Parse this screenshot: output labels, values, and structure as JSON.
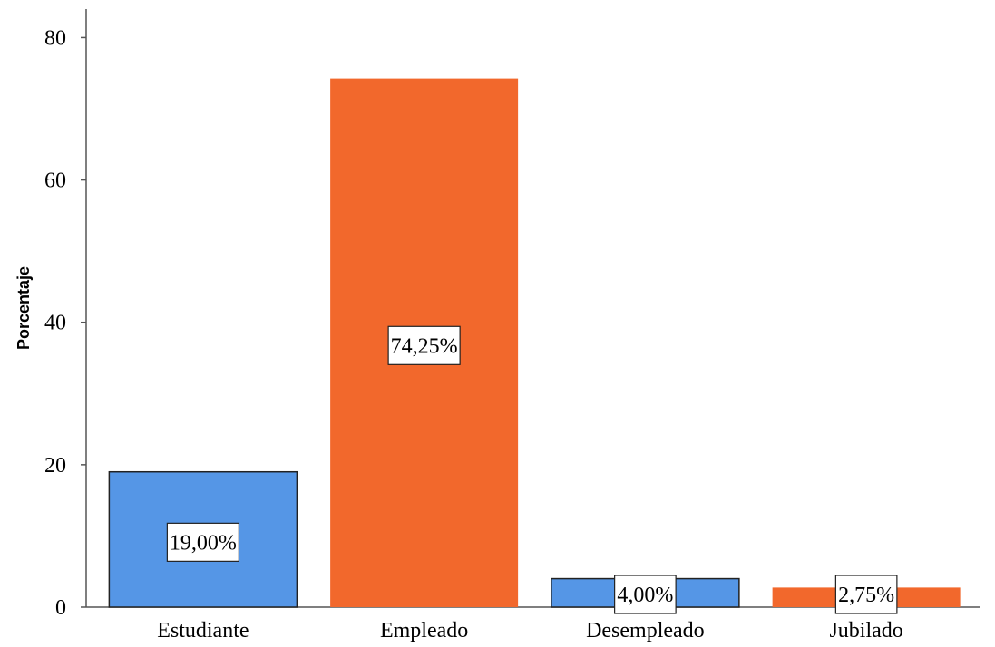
{
  "chart_data": {
    "type": "bar",
    "title": "",
    "xlabel": "",
    "ylabel": "Porcentaje",
    "categories": [
      "Estudiante",
      "Empleado",
      "Desempleado",
      "Jubilado"
    ],
    "values": [
      19.0,
      74.25,
      4.0,
      2.75
    ],
    "data_labels": [
      "19,00%",
      "74,25%",
      "4,00%",
      "2,75%"
    ],
    "yticks": [
      0,
      20,
      40,
      60,
      80
    ],
    "ylim": [
      0,
      84
    ],
    "grid": false,
    "legend": "none",
    "colors": [
      "#5596E6",
      "#F2682C",
      "#5596E6",
      "#F2682C"
    ]
  }
}
